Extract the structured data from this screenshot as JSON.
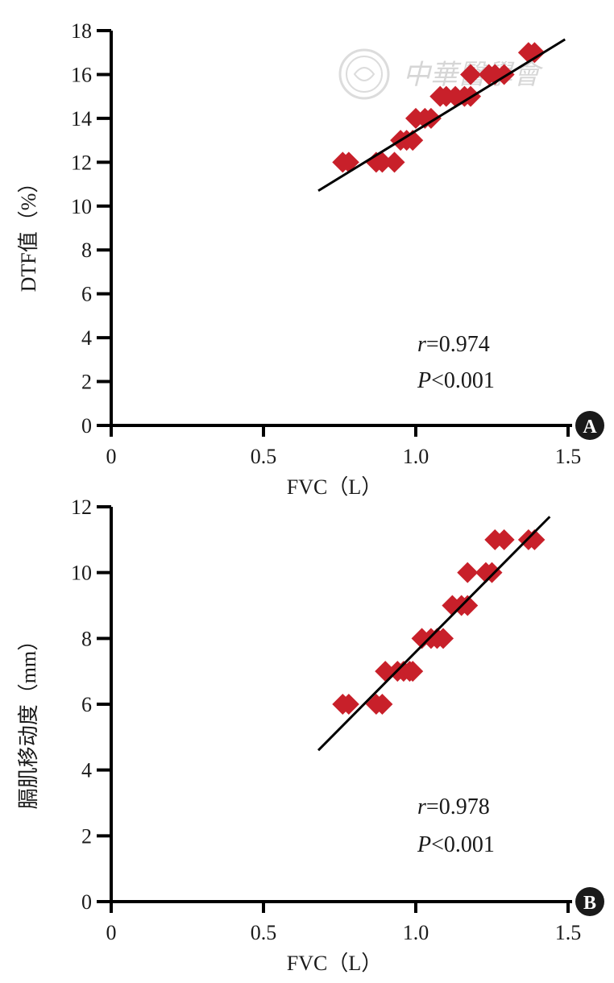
{
  "watermark": {
    "text": "中華醫學會"
  },
  "colors": {
    "marker": "#c8202a",
    "axis": "#000000",
    "line": "#000000"
  },
  "chart_data": [
    {
      "panel": "A",
      "type": "scatter",
      "xlabel": "FVC（L）",
      "ylabel": "DTF值（%）",
      "xlim": [
        0,
        1.5
      ],
      "ylim": [
        0,
        18
      ],
      "xticks": [
        0,
        0.5,
        1.0,
        1.5
      ],
      "xtick_labels": [
        "0",
        "0.5",
        "1.0",
        "1.5"
      ],
      "yticks": [
        0,
        2,
        4,
        6,
        8,
        10,
        12,
        14,
        16,
        18
      ],
      "ytick_labels": [
        "0",
        "2",
        "4",
        "6",
        "8",
        "10",
        "12",
        "14",
        "16",
        "18"
      ],
      "stats": {
        "r_symbol": "r",
        "r_value": "=0.974",
        "p_symbol": "P",
        "p_value": "<0.001"
      },
      "points": [
        [
          0.76,
          12
        ],
        [
          0.78,
          12
        ],
        [
          0.87,
          12
        ],
        [
          0.89,
          12
        ],
        [
          0.93,
          12
        ],
        [
          0.95,
          13
        ],
        [
          0.97,
          13
        ],
        [
          0.99,
          13
        ],
        [
          1.0,
          14
        ],
        [
          1.03,
          14
        ],
        [
          1.05,
          14
        ],
        [
          1.08,
          15
        ],
        [
          1.1,
          15
        ],
        [
          1.13,
          15
        ],
        [
          1.16,
          15
        ],
        [
          1.18,
          15
        ],
        [
          1.18,
          16
        ],
        [
          1.24,
          16
        ],
        [
          1.26,
          16
        ],
        [
          1.29,
          16
        ],
        [
          1.37,
          17
        ],
        [
          1.39,
          17
        ]
      ],
      "fit_line": {
        "x": [
          0.68,
          1.49
        ],
        "y": [
          10.7,
          17.6
        ]
      },
      "grid": false
    },
    {
      "panel": "B",
      "type": "scatter",
      "xlabel": "FVC（L）",
      "ylabel": "膈肌移动度（mm）",
      "xlim": [
        0,
        1.5
      ],
      "ylim": [
        0,
        12
      ],
      "xticks": [
        0,
        0.5,
        1.0,
        1.5
      ],
      "xtick_labels": [
        "0",
        "0.5",
        "1.0",
        "1.5"
      ],
      "yticks": [
        0,
        2,
        4,
        6,
        8,
        10,
        12
      ],
      "ytick_labels": [
        "0",
        "2",
        "4",
        "6",
        "8",
        "10",
        "12"
      ],
      "stats": {
        "r_symbol": "r",
        "r_value": "=0.978",
        "p_symbol": "P",
        "p_value": "<0.001"
      },
      "points": [
        [
          0.76,
          6
        ],
        [
          0.78,
          6
        ],
        [
          0.87,
          6
        ],
        [
          0.89,
          6
        ],
        [
          0.9,
          7
        ],
        [
          0.94,
          7
        ],
        [
          0.96,
          7
        ],
        [
          0.98,
          7
        ],
        [
          0.99,
          7
        ],
        [
          1.02,
          8
        ],
        [
          1.05,
          8
        ],
        [
          1.07,
          8
        ],
        [
          1.09,
          8
        ],
        [
          1.12,
          9
        ],
        [
          1.15,
          9
        ],
        [
          1.17,
          9
        ],
        [
          1.17,
          10
        ],
        [
          1.23,
          10
        ],
        [
          1.25,
          10
        ],
        [
          1.26,
          11
        ],
        [
          1.29,
          11
        ],
        [
          1.37,
          11
        ],
        [
          1.39,
          11
        ]
      ],
      "fit_line": {
        "x": [
          0.68,
          1.44
        ],
        "y": [
          4.6,
          11.7
        ]
      },
      "grid": false
    }
  ]
}
